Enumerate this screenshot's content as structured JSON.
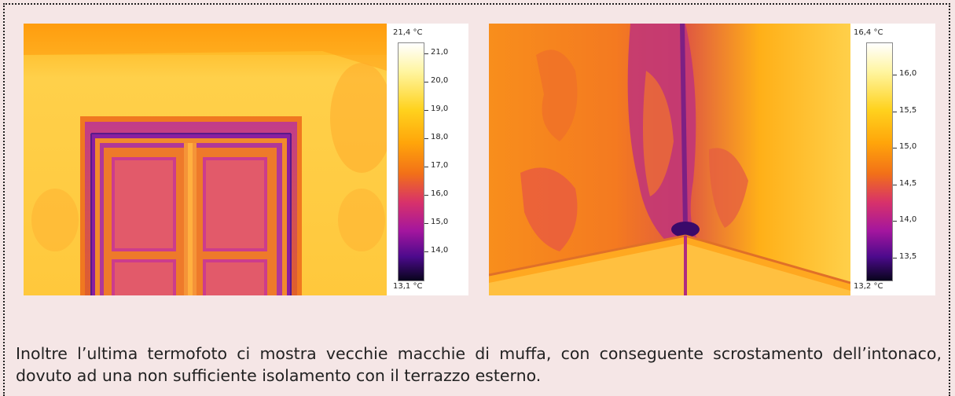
{
  "thermo_left": {
    "max_label": "21,4 °C",
    "min_label": "13,1 °C",
    "ticks": [
      "21,0",
      "20,0",
      "19,0",
      "18,0",
      "17,0",
      "16,0",
      "15,0",
      "14,0"
    ]
  },
  "thermo_right": {
    "max_label": "16,4 °C",
    "min_label": "13,2 °C",
    "ticks": [
      "16,0",
      "15,5",
      "15,0",
      "14,5",
      "14,0",
      "13,5"
    ]
  },
  "caption": "Inoltre l’ultima termofoto ci mostra vecchie macchie di muffa, con conseguente scrostamento dell’intonaco, dovuto ad una non sufficiente isolamento con il terrazzo esterno."
}
